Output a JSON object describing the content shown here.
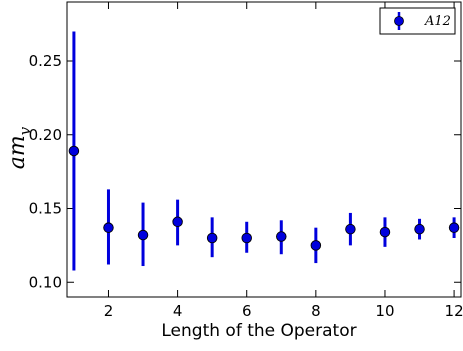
{
  "chart_data": {
    "type": "scatter",
    "title": "",
    "xlabel": "Length of the Operator",
    "ylabel": {
      "base": "am",
      "subscript": "v"
    },
    "xlim": [
      0.8,
      12.2
    ],
    "ylim": [
      0.09,
      0.29
    ],
    "xticks": [
      2,
      4,
      6,
      8,
      10,
      12
    ],
    "xtick_labels": [
      "2",
      "4",
      "6",
      "8",
      "10",
      "12"
    ],
    "yticks": [
      0.1,
      0.15,
      0.2,
      0.25
    ],
    "ytick_labels": [
      "0.10",
      "0.15",
      "0.20",
      "0.25"
    ],
    "grid": false,
    "legend": {
      "position": "top-right",
      "entries": [
        "A12"
      ]
    },
    "series": [
      {
        "name": "A12",
        "color": "#0000dd",
        "marker": "circle",
        "error_bars": true,
        "x": [
          1,
          2,
          3,
          4,
          5,
          6,
          7,
          8,
          9,
          10,
          11,
          12
        ],
        "y": [
          0.189,
          0.137,
          0.132,
          0.141,
          0.13,
          0.13,
          0.131,
          0.125,
          0.136,
          0.134,
          0.136,
          0.137
        ],
        "yerr_low": [
          0.108,
          0.112,
          0.111,
          0.125,
          0.117,
          0.12,
          0.119,
          0.113,
          0.125,
          0.124,
          0.129,
          0.13
        ],
        "yerr_high": [
          0.27,
          0.163,
          0.154,
          0.156,
          0.144,
          0.141,
          0.142,
          0.137,
          0.147,
          0.144,
          0.143,
          0.144
        ]
      }
    ]
  }
}
